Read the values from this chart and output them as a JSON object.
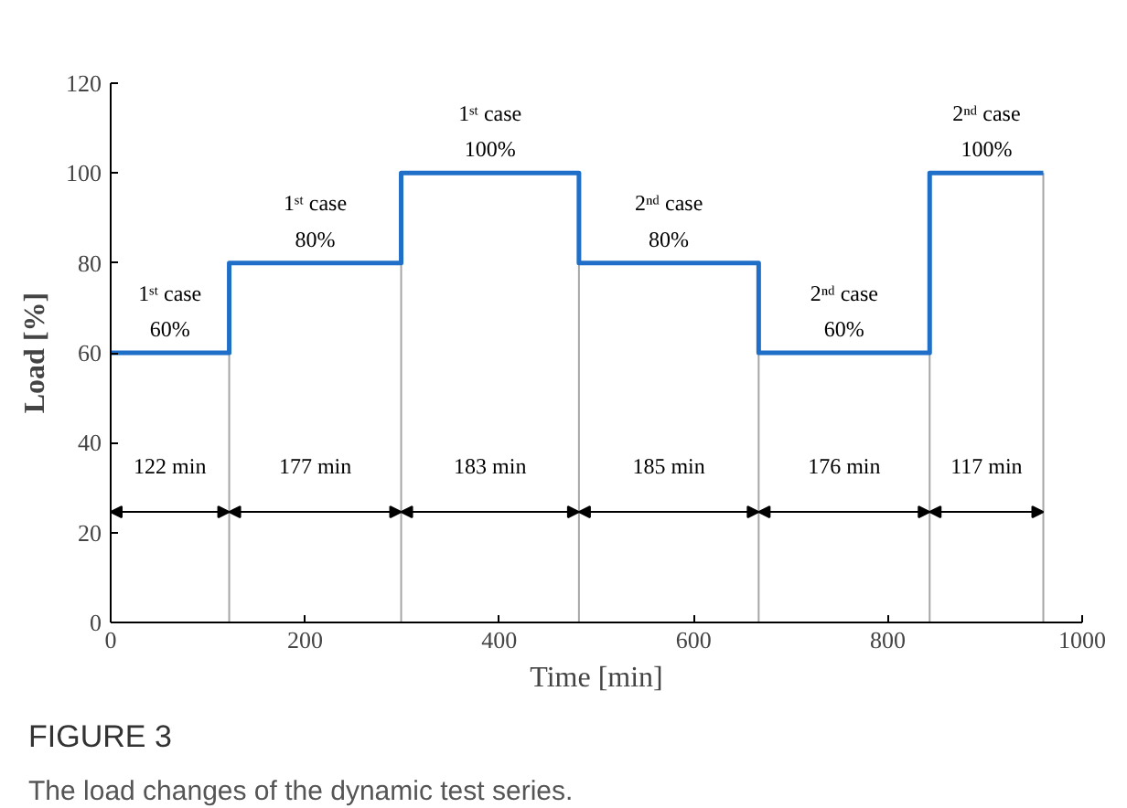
{
  "chart_data": {
    "type": "step",
    "xlabel": "Time [min]",
    "ylabel": "Load [%]",
    "x": [
      0,
      122,
      299,
      482,
      667,
      843,
      960
    ],
    "series": [
      {
        "color": "#1f6fc8",
        "values": [
          60,
          80,
          100,
          80,
          60,
          100,
          100
        ]
      }
    ],
    "xlim": [
      0,
      1000
    ],
    "xticks": [
      0,
      200,
      400,
      600,
      800,
      1000
    ],
    "ylim": [
      0,
      120
    ],
    "yticks": [
      0,
      20,
      40,
      60,
      80,
      100,
      120
    ],
    "grid": false,
    "marker": "none",
    "line_style": "solid",
    "ref_lines": [
      {
        "axis": "x",
        "value": 122,
        "color": "#a6a6a6"
      },
      {
        "axis": "x",
        "value": 299,
        "color": "#a6a6a6"
      },
      {
        "axis": "x",
        "value": 482,
        "color": "#a6a6a6"
      },
      {
        "axis": "x",
        "value": 667,
        "color": "#a6a6a6"
      },
      {
        "axis": "x",
        "value": 843,
        "color": "#a6a6a6"
      },
      {
        "axis": "x",
        "value": 960,
        "color": "#a6a6a6"
      }
    ],
    "annotations": [
      "1ˢᵗ case\n60%",
      "1ˢᵗ case\n80%",
      "1ˢᵗ case\n100%",
      "2ⁿᵈ case\n80%",
      "2ⁿᵈ case\n60%",
      "2ⁿᵈ case\n100%",
      "122 min",
      "177 min",
      "183 min",
      "185 min",
      "176 min",
      "117 min",
      "FIGURE 3",
      "The load changes of the dynamic test series."
    ]
  }
}
